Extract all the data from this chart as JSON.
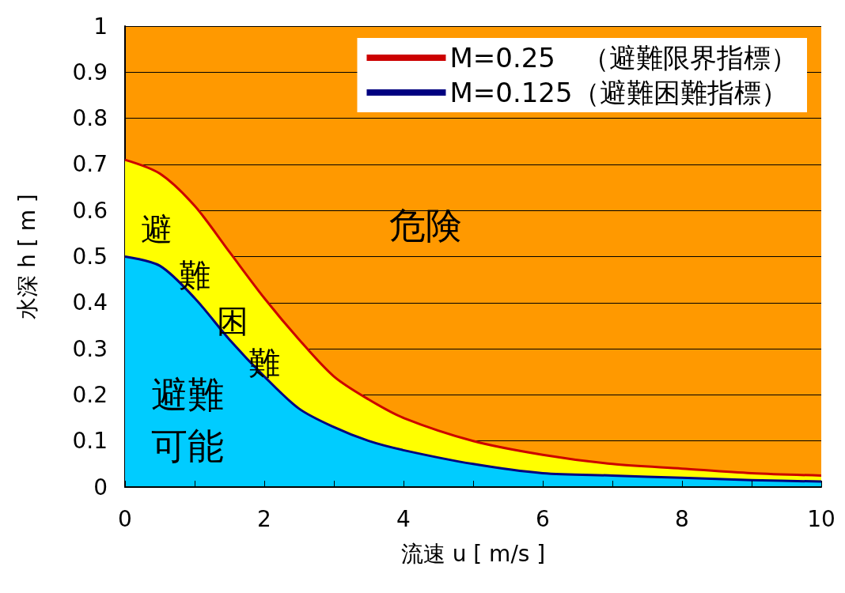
{
  "chart_data": {
    "type": "area",
    "xlabel": "流速 u [ m/s ]",
    "ylabel": "水深 h [ m ]",
    "x": [
      0,
      0.5,
      1,
      1.5,
      2,
      2.5,
      3,
      3.5,
      4,
      5,
      6,
      7,
      8,
      9,
      10
    ],
    "series": [
      {
        "name": "M=0.25　（避難限界指標）",
        "color": "#cc0000",
        "values": [
          0.71,
          0.68,
          0.61,
          0.51,
          0.41,
          0.32,
          0.24,
          0.19,
          0.15,
          0.1,
          0.07,
          0.05,
          0.04,
          0.03,
          0.025
        ]
      },
      {
        "name": "M=0.125（避難困難指標）",
        "color": "#000080",
        "values": [
          0.5,
          0.48,
          0.41,
          0.32,
          0.24,
          0.17,
          0.13,
          0.1,
          0.08,
          0.05,
          0.03,
          0.025,
          0.02,
          0.015,
          0.012
        ]
      }
    ],
    "xlim": [
      0,
      10
    ],
    "xticks": [
      0,
      {
        "value": 1,
        "label": null
      },
      2,
      {
        "value": 3,
        "label": null
      },
      4,
      {
        "value": 5,
        "label": null
      },
      6,
      {
        "value": 7,
        "label": null
      },
      8,
      {
        "value": 9,
        "label": null
      },
      10
    ],
    "ylim": [
      0,
      1
    ],
    "yticks": [
      0,
      0.1,
      0.2,
      0.3,
      0.4,
      0.5,
      0.6,
      0.7,
      0.8,
      0.9,
      1
    ],
    "bands": [
      {
        "axis": "y",
        "from": 0,
        "to": 1,
        "label": "危険",
        "color": "#ff9900"
      }
    ],
    "annotations": [
      "避難困難",
      "避難可能"
    ],
    "grid": "y",
    "legend": "top right",
    "marker": "none"
  }
}
